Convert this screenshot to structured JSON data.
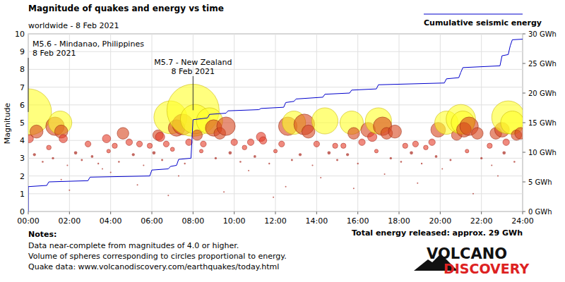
{
  "chart_data": {
    "type": "scatter",
    "title": "Magnitude of quakes and energy vs time",
    "subtitle": "worldwide -  8 Feb 2021",
    "y_label": "Magnitude",
    "xlim": [
      0,
      24
    ],
    "xticks": [
      {
        "value": 0,
        "label": "00:00"
      },
      {
        "value": 2,
        "label": "02:00"
      },
      {
        "value": 4,
        "label": "04:00"
      },
      {
        "value": 6,
        "label": "06:00"
      },
      {
        "value": 8,
        "label": "08:00"
      },
      {
        "value": 10,
        "label": "10:00"
      },
      {
        "value": 12,
        "label": "12:00"
      },
      {
        "value": 14,
        "label": "14:00"
      },
      {
        "value": 16,
        "label": "16:00"
      },
      {
        "value": 18,
        "label": "18:00"
      },
      {
        "value": 20,
        "label": "20:00"
      },
      {
        "value": 22,
        "label": "22:00"
      },
      {
        "value": 24,
        "label": "24:00"
      }
    ],
    "ylim": [
      0,
      10
    ],
    "yticks": [
      0,
      1,
      2,
      3,
      4,
      5,
      6,
      7,
      8,
      9,
      10
    ],
    "y2lim": [
      0,
      30
    ],
    "y2ticks": [
      {
        "value": 0,
        "label": "0 GWh"
      },
      {
        "value": 5,
        "label": "5 GWh"
      },
      {
        "value": 10,
        "label": "10 GWh"
      },
      {
        "value": 15,
        "label": "15 GWh"
      },
      {
        "value": 20,
        "label": "20 GWh"
      },
      {
        "value": 25,
        "label": "25 GWh"
      },
      {
        "value": 30,
        "label": "30 GWh"
      }
    ],
    "grid": true,
    "legend": "top-right",
    "series": [
      {
        "type": "scatter",
        "marker": "circle",
        "x": [
          0.0,
          0.05,
          0.4,
          1.3,
          1.55,
          1.6,
          1.0,
          1.7,
          2.9,
          3.8,
          4.2,
          4.6,
          4.9,
          5.4,
          5.9,
          6.3,
          6.4,
          6.7,
          6.9,
          7.2,
          7.5,
          7.8,
          8.0,
          8.1,
          8.2,
          8.5,
          8.8,
          9.0,
          9.3,
          9.6,
          10.0,
          10.5,
          10.8,
          11.3,
          11.4,
          12.3,
          12.6,
          12.9,
          13.4,
          13.6,
          14.0,
          14.4,
          14.9,
          15.3,
          15.7,
          15.8,
          16.2,
          16.5,
          16.7,
          17.0,
          17.2,
          17.4,
          17.8,
          18.3,
          18.8,
          19.3,
          19.6,
          19.9,
          20.3,
          20.8,
          21.0,
          21.1,
          21.15,
          21.4,
          21.8,
          22.4,
          22.7,
          23.0,
          23.2,
          23.3,
          23.5,
          23.7,
          23.9,
          0.3,
          0.7,
          1.2,
          1.9,
          2.3,
          2.6,
          3.1,
          3.4,
          3.9,
          4.4,
          5.1,
          5.6,
          6.1,
          6.5,
          7.0,
          7.6,
          8.4,
          9.1,
          9.8,
          10.3,
          11.0,
          11.7,
          12.0,
          12.8,
          13.2,
          13.8,
          14.6,
          15.0,
          15.5,
          16.0,
          16.9,
          17.6,
          18.1,
          18.6,
          19.1,
          19.8,
          20.5,
          21.3,
          22.0,
          22.5,
          23.1,
          23.6,
          1.6,
          4.0,
          7.3,
          10.7,
          14.2,
          17.3,
          20.1,
          22.8,
          2.0,
          5.3,
          9.5,
          12.5,
          15.8,
          18.9,
          21.6,
          11.9,
          6.8,
          3.6
        ],
        "values": [
          5.6,
          4.1,
          4.5,
          4.8,
          5.0,
          4.5,
          3.6,
          4.1,
          3.8,
          4.1,
          3.7,
          4.4,
          3.9,
          3.8,
          3.7,
          4.3,
          4.2,
          3.8,
          5.3,
          4.7,
          4.9,
          3.9,
          5.7,
          5.2,
          4.3,
          3.8,
          5.1,
          4.7,
          4.4,
          4.8,
          3.9,
          3.6,
          3.9,
          4.2,
          4.0,
          3.8,
          4.8,
          5.0,
          4.9,
          4.5,
          3.8,
          5.1,
          3.7,
          3.7,
          5.0,
          4.4,
          3.9,
          4.6,
          4.2,
          5.1,
          4.8,
          4.4,
          4.5,
          3.7,
          3.8,
          3.6,
          3.9,
          4.6,
          5.0,
          4.3,
          5.2,
          5.0,
          4.6,
          4.8,
          4.4,
          3.7,
          4.4,
          4.6,
          3.9,
          5.3,
          5.0,
          4.3,
          4.4,
          3.2,
          2.8,
          3.0,
          2.6,
          3.3,
          2.9,
          3.1,
          2.7,
          3.4,
          2.8,
          3.2,
          2.6,
          3.3,
          2.9,
          3.5,
          2.7,
          3.4,
          3.0,
          3.3,
          2.8,
          3.1,
          2.7,
          3.4,
          2.9,
          3.2,
          2.6,
          3.3,
          2.9,
          3.2,
          2.7,
          3.4,
          3.0,
          2.8,
          3.3,
          2.7,
          3.1,
          2.9,
          3.4,
          3.0,
          2.6,
          3.3,
          2.8,
          1.8,
          2.2,
          2.0,
          2.3,
          1.9,
          2.1,
          2.4,
          2.0,
          1.2,
          1.5,
          1.1,
          1.4,
          1.3,
          1.6,
          1.0,
          0.8,
          0.9,
          2.4
        ]
      },
      {
        "name": "Cumulative seismic energy",
        "type": "line",
        "axis": "y2",
        "color": "#0000cc",
        "line_style": "solid",
        "x": [
          0,
          0,
          0.9,
          1.0,
          2.9,
          3.0,
          5.9,
          6.0,
          6.8,
          6.9,
          7.2,
          7.3,
          7.9,
          8.0,
          8.7,
          8.8,
          9.6,
          9.7,
          11.2,
          11.3,
          12.4,
          12.5,
          12.9,
          13.0,
          14.3,
          14.4,
          15.6,
          15.7,
          16.9,
          17.0,
          20.2,
          20.3,
          20.9,
          21.0,
          21.1,
          22.9,
          23.0,
          23.3,
          23.4,
          23.5,
          24
        ],
        "values": [
          0,
          4.2,
          4.4,
          5.0,
          5.2,
          5.8,
          6.0,
          7.0,
          7.2,
          7.6,
          7.8,
          8.8,
          9.0,
          15.5,
          15.8,
          16.4,
          16.6,
          17.0,
          17.2,
          17.4,
          17.6,
          18.4,
          18.6,
          19.0,
          19.3,
          19.8,
          20.0,
          20.5,
          20.7,
          21.4,
          21.7,
          22.4,
          22.6,
          23.5,
          24.3,
          24.6,
          26.3,
          26.5,
          28.0,
          29.0,
          29.1
        ]
      }
    ],
    "annotations": [
      {
        "text": "M5.6 - Mindanao, Philippines",
        "date": "8 Feb 2021",
        "x": 0.0,
        "y": 5.6
      },
      {
        "text": "M5.7 - New Zealand",
        "date": "8 Feb 2021",
        "x": 8.0,
        "y": 5.7
      }
    ],
    "notes_title": "Notes:",
    "notes": [
      "Data near-complete from magnitudes of 4.0 or higher.",
      "Volume of spheres corresponding to circles proportional to energy.",
      "Quake data: www.volcanodiscovery.com/earthquakes/today.html"
    ],
    "total_energy": "Total energy released: approx. 29 GWh",
    "logo": [
      "VOLCANO",
      "DISCOVERY"
    ]
  }
}
